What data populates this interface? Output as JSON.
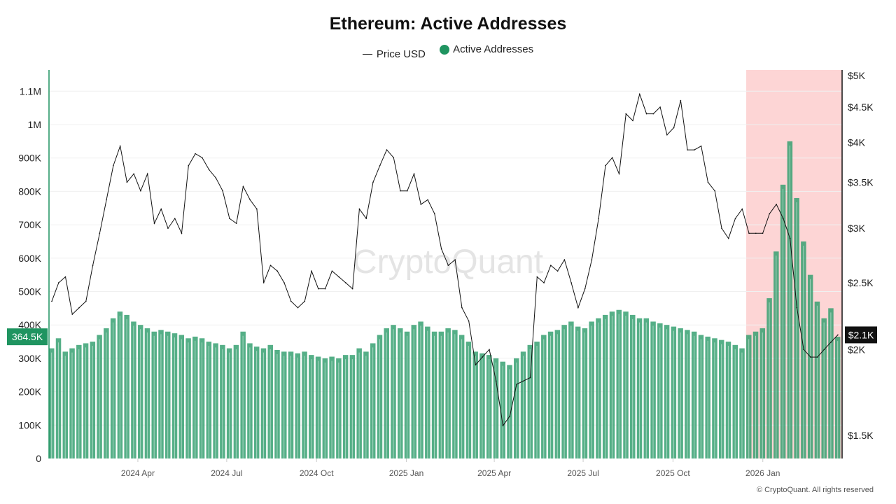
{
  "title": "Ethereum: Active Addresses",
  "legend": {
    "price": "Price USD",
    "addresses": "Active Addresses"
  },
  "watermark": "CryptoQuant",
  "footer": "© CryptoQuant. All rights reserved",
  "colors": {
    "addresses": "#2f9e6c",
    "price": "#111111",
    "highlight": "#fdd5d5",
    "left_badge": "#1f9460",
    "right_badge": "#111111"
  },
  "chart_data": {
    "type": "bar+line",
    "title": "Ethereum: Active Addresses",
    "left_axis": {
      "ticks": [
        0,
        100000,
        200000,
        300000,
        400000,
        500000,
        600000,
        700000,
        800000,
        900000,
        1000000,
        1100000
      ],
      "labels": [
        "0",
        "100K",
        "200K",
        "300K",
        "400K",
        "500K",
        "600K",
        "700K",
        "800K",
        "900K",
        "1M",
        "1.1M"
      ],
      "ylim": [
        0,
        1160000
      ]
    },
    "right_axis": {
      "scale": "log",
      "ticks": [
        1500,
        2000,
        2500,
        3000,
        3500,
        4000,
        4500,
        5000
      ],
      "labels": [
        "$1.5K",
        "$2K",
        "$2.5K",
        "$3K",
        "$3.5K",
        "$4K",
        "$4.5K",
        "$5K"
      ]
    },
    "x_axis": {
      "ticks": [
        "2024-04-01",
        "2024-07-01",
        "2024-10-01",
        "2025-01-01",
        "2025-04-01",
        "2025-07-01",
        "2025-10-01",
        "2026-01-01"
      ],
      "labels": [
        "2024 Apr",
        "2024 Jul",
        "2024 Oct",
        "2025 Jan",
        "2025 Apr",
        "2025 Jul",
        "2025 Oct",
        "2026 Jan"
      ],
      "range": [
        "2024-01-01",
        "2026-03-22"
      ]
    },
    "grid": true,
    "legend_position": "top",
    "highlight": {
      "start": "2025-12-15",
      "end": "2026-03-22"
    },
    "current_values": {
      "addresses": "364.5K",
      "price": "$2.1K"
    },
    "x": [
      "2024-01-01",
      "2024-01-08",
      "2024-01-15",
      "2024-01-22",
      "2024-01-29",
      "2024-02-05",
      "2024-02-12",
      "2024-02-19",
      "2024-02-26",
      "2024-03-04",
      "2024-03-11",
      "2024-03-18",
      "2024-03-25",
      "2024-04-01",
      "2024-04-08",
      "2024-04-15",
      "2024-04-22",
      "2024-04-29",
      "2024-05-06",
      "2024-05-13",
      "2024-05-20",
      "2024-05-27",
      "2024-06-03",
      "2024-06-10",
      "2024-06-17",
      "2024-06-24",
      "2024-07-01",
      "2024-07-08",
      "2024-07-15",
      "2024-07-22",
      "2024-07-29",
      "2024-08-05",
      "2024-08-12",
      "2024-08-19",
      "2024-08-26",
      "2024-09-02",
      "2024-09-09",
      "2024-09-16",
      "2024-09-23",
      "2024-09-30",
      "2024-10-07",
      "2024-10-14",
      "2024-10-21",
      "2024-10-28",
      "2024-11-04",
      "2024-11-11",
      "2024-11-18",
      "2024-11-25",
      "2024-12-02",
      "2024-12-09",
      "2024-12-16",
      "2024-12-23",
      "2024-12-30",
      "2025-01-06",
      "2025-01-13",
      "2025-01-20",
      "2025-01-27",
      "2025-02-03",
      "2025-02-10",
      "2025-02-17",
      "2025-02-24",
      "2025-03-03",
      "2025-03-10",
      "2025-03-17",
      "2025-03-24",
      "2025-03-31",
      "2025-04-07",
      "2025-04-14",
      "2025-04-21",
      "2025-04-28",
      "2025-05-05",
      "2025-05-12",
      "2025-05-19",
      "2025-05-26",
      "2025-06-02",
      "2025-06-09",
      "2025-06-16",
      "2025-06-23",
      "2025-06-30",
      "2025-07-07",
      "2025-07-14",
      "2025-07-21",
      "2025-07-28",
      "2025-08-04",
      "2025-08-11",
      "2025-08-18",
      "2025-08-25",
      "2025-09-01",
      "2025-09-08",
      "2025-09-15",
      "2025-09-22",
      "2025-09-29",
      "2025-10-06",
      "2025-10-13",
      "2025-10-20",
      "2025-10-27",
      "2025-11-03",
      "2025-11-10",
      "2025-11-17",
      "2025-11-24",
      "2025-12-01",
      "2025-12-08",
      "2025-12-15",
      "2025-12-22",
      "2025-12-29",
      "2026-01-05",
      "2026-01-12",
      "2026-01-19",
      "2026-01-26",
      "2026-02-02",
      "2026-02-09",
      "2026-02-16",
      "2026-02-23",
      "2026-03-02",
      "2026-03-09",
      "2026-03-16"
    ],
    "series": [
      {
        "name": "Price USD",
        "axis": "right",
        "type": "line",
        "values": [
          2350,
          2500,
          2550,
          2250,
          2300,
          2350,
          2650,
          2950,
          3300,
          3700,
          3950,
          3500,
          3600,
          3400,
          3600,
          3050,
          3200,
          3000,
          3100,
          2950,
          3700,
          3850,
          3800,
          3650,
          3550,
          3400,
          3100,
          3050,
          3450,
          3300,
          3200,
          2500,
          2650,
          2600,
          2500,
          2350,
          2300,
          2350,
          2600,
          2450,
          2450,
          2600,
          2550,
          2500,
          2450,
          3200,
          3100,
          3500,
          3700,
          3900,
          3800,
          3400,
          3400,
          3600,
          3250,
          3300,
          3150,
          2800,
          2650,
          2700,
          2300,
          2200,
          1900,
          1950,
          2000,
          1800,
          1550,
          1600,
          1780,
          1800,
          1820,
          2550,
          2500,
          2650,
          2600,
          2700,
          2500,
          2300,
          2450,
          2700,
          3100,
          3700,
          3800,
          3600,
          4400,
          4300,
          4700,
          4400,
          4400,
          4500,
          4100,
          4200,
          4600,
          3900,
          3900,
          3950,
          3500,
          3400,
          3000,
          2900,
          3100,
          3200,
          2950,
          2950,
          2950,
          3150,
          3250,
          3100,
          2900,
          2300,
          2000,
          1950,
          1950,
          2000,
          2050,
          2100
        ]
      },
      {
        "name": "Active Addresses",
        "axis": "left",
        "type": "bar",
        "values": [
          330000,
          360000,
          320000,
          330000,
          340000,
          345000,
          350000,
          370000,
          390000,
          420000,
          440000,
          430000,
          410000,
          400000,
          390000,
          380000,
          385000,
          380000,
          375000,
          370000,
          360000,
          365000,
          360000,
          350000,
          345000,
          340000,
          330000,
          340000,
          380000,
          345000,
          335000,
          330000,
          340000,
          325000,
          320000,
          320000,
          315000,
          320000,
          310000,
          305000,
          300000,
          305000,
          300000,
          310000,
          310000,
          330000,
          320000,
          345000,
          370000,
          390000,
          400000,
          390000,
          380000,
          400000,
          410000,
          395000,
          380000,
          380000,
          390000,
          385000,
          370000,
          350000,
          320000,
          315000,
          310000,
          300000,
          290000,
          280000,
          300000,
          320000,
          340000,
          350000,
          370000,
          380000,
          385000,
          400000,
          410000,
          395000,
          390000,
          410000,
          420000,
          430000,
          440000,
          445000,
          440000,
          430000,
          420000,
          420000,
          410000,
          405000,
          400000,
          395000,
          390000,
          385000,
          380000,
          370000,
          365000,
          360000,
          355000,
          350000,
          340000,
          330000,
          370000,
          380000,
          390000,
          480000,
          620000,
          820000,
          950000,
          780000,
          650000,
          550000,
          470000,
          420000,
          450000,
          364500
        ]
      }
    ]
  }
}
